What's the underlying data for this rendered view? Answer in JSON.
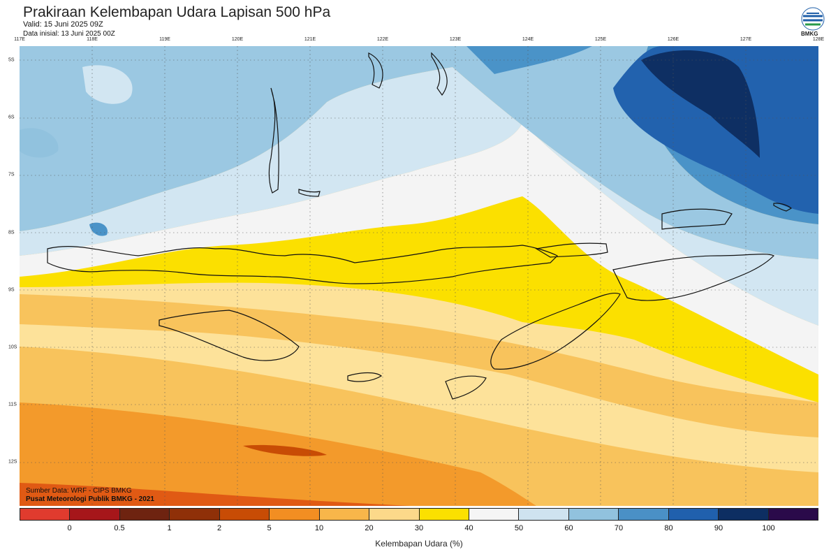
{
  "header": {
    "title": "Prakiraan Kelembapan Udara Lapisan 500 hPa",
    "valid": "Valid: 15 Juni 2025 09Z",
    "init": "Data inisial: 13 Juni 2025 00Z"
  },
  "logo": {
    "text": "BMKG"
  },
  "map": {
    "lon_labels": [
      "117E",
      "118E",
      "119E",
      "120E",
      "121E",
      "122E",
      "123E",
      "124E",
      "125E",
      "126E",
      "127E",
      "128E"
    ],
    "lat_labels": [
      "5S",
      "6S",
      "7S",
      "8S",
      "9S",
      "10S",
      "11S",
      "12S"
    ],
    "source_line1": "Sumber Data: WRF - CIPS BMKG",
    "source_line2": "Pusat Meteorologi Publik BMKG - 2021"
  },
  "colorbar": {
    "title": "Kelembapan Udara (%)",
    "labels": [
      "0",
      "0.5",
      "1",
      "2",
      "5",
      "10",
      "20",
      "30",
      "40",
      "50",
      "60",
      "70",
      "80",
      "90",
      "100"
    ],
    "colors": [
      "#e03b2e",
      "#a6161a",
      "#6e2310",
      "#8f3008",
      "#c84c05",
      "#f28e22",
      "#f8b64a",
      "#fcd98a",
      "#fbe000",
      "#f5f5f5",
      "#cfe3f0",
      "#91c2de",
      "#4a90c6",
      "#2060ad",
      "#0d2e62",
      "#2a0a4a"
    ]
  },
  "shading_colors": {
    "deep_orange": "#e05a14",
    "orange": "#f39a2b",
    "light_orange": "#f8c35c",
    "pale": "#fde29a",
    "yellow": "#fbe000",
    "white": "#f4f4f4",
    "pale_blue": "#d2e6f2",
    "light_blue": "#9bc8e2",
    "blue": "#4a93c8",
    "dark_blue": "#2262ae",
    "navy": "#0e2f63"
  }
}
